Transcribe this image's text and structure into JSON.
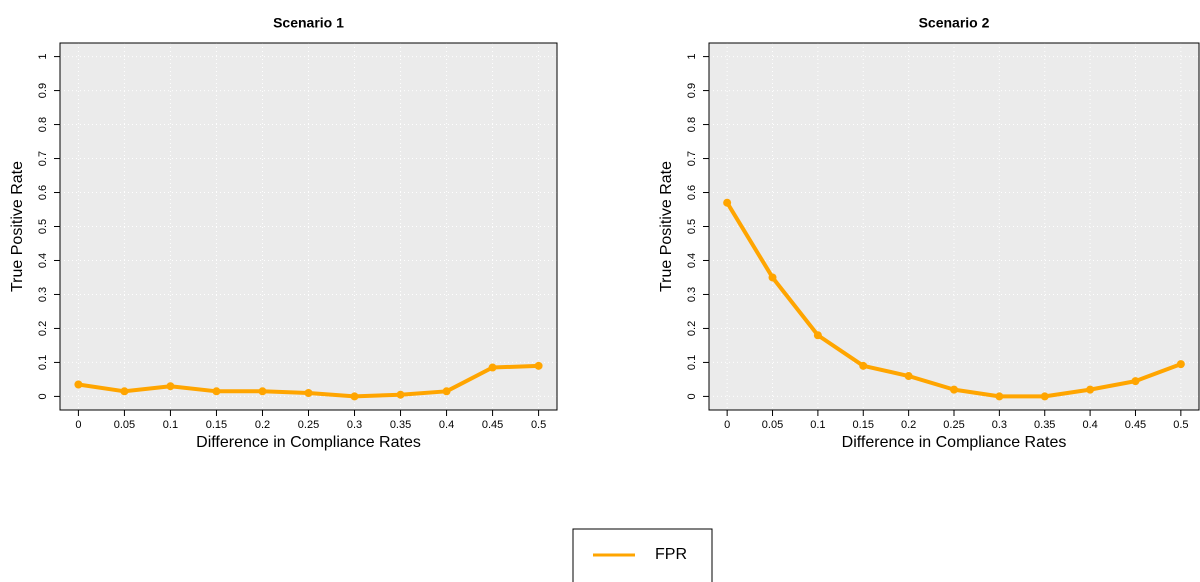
{
  "chart_data": [
    {
      "type": "line",
      "title": "Scenario 1",
      "x_label": "Difference in Compliance Rates",
      "y_label": "True Positive Rate",
      "x": [
        0,
        0.05,
        0.1,
        0.15,
        0.2,
        0.25,
        0.3,
        0.35,
        0.4,
        0.45,
        0.5
      ],
      "series": [
        {
          "color": "#FFA500",
          "values": [
            0.035,
            0.015,
            0.03,
            0.015,
            0.015,
            0.01,
            0,
            0.005,
            0.015,
            0.085,
            0.09
          ]
        }
      ],
      "xlim": [
        -0.02,
        0.52
      ],
      "ylim": [
        -0.04,
        1.04
      ],
      "xticks": [
        0,
        0.05,
        0.1,
        0.15,
        0.2,
        0.25,
        0.3,
        0.35,
        0.4,
        0.45,
        0.5
      ],
      "yticks": [
        0,
        0.1,
        0.2,
        0.3,
        0.4,
        0.5,
        0.6,
        0.7,
        0.8,
        0.9,
        1
      ],
      "grid": true
    },
    {
      "type": "line",
      "title": "Scenario 2",
      "x_label": "Difference in Compliance Rates",
      "y_label": "True Positive Rate",
      "x": [
        0,
        0.05,
        0.1,
        0.15,
        0.2,
        0.25,
        0.3,
        0.35,
        0.4,
        0.45,
        0.5
      ],
      "series": [
        {
          "color": "#FFA500",
          "values": [
            0.57,
            0.35,
            0.18,
            0.09,
            0.06,
            0.02,
            0,
            0,
            0.02,
            0.045,
            0.095
          ]
        }
      ],
      "xlim": [
        -0.02,
        0.52
      ],
      "ylim": [
        -0.04,
        1.04
      ],
      "xticks": [
        0,
        0.05,
        0.1,
        0.15,
        0.2,
        0.25,
        0.3,
        0.35,
        0.4,
        0.45,
        0.5
      ],
      "yticks": [
        0,
        0.1,
        0.2,
        0.3,
        0.4,
        0.5,
        0.6,
        0.7,
        0.8,
        0.9,
        1
      ],
      "grid": true
    }
  ],
  "legend": {
    "name": "FPR",
    "color": "#FFA500"
  }
}
